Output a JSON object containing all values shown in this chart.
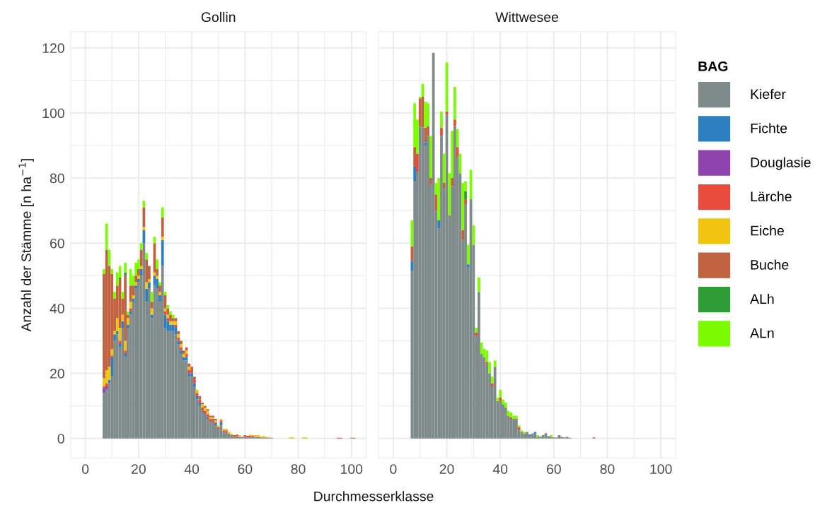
{
  "chart_data": [
    {
      "type": "bar",
      "stacked": true,
      "title": "Gollin",
      "ylabel": "Anzahl der Stämme [n ha$^{−1}$]",
      "xlabel": "Durchmesserklasse",
      "xlim": [
        -5.5,
        105.5
      ],
      "xticks": [
        0,
        20,
        40,
        60,
        80,
        100
      ],
      "ylim": [
        -6,
        125
      ],
      "yticks": [
        0,
        20,
        40,
        60,
        80,
        100,
        120
      ],
      "grid": true,
      "legend": "right",
      "legend_title": "BAG",
      "x": [
        7,
        8,
        9,
        10,
        11,
        12,
        13,
        14,
        15,
        16,
        17,
        18,
        19,
        20,
        21,
        22,
        23,
        24,
        25,
        26,
        27,
        28,
        29,
        30,
        31,
        32,
        33,
        34,
        35,
        36,
        37,
        38,
        39,
        40,
        41,
        42,
        43,
        44,
        45,
        46,
        47,
        48,
        49,
        50,
        51,
        52,
        53,
        54,
        55,
        56,
        57,
        58,
        59,
        60,
        61,
        62,
        63,
        64,
        65,
        66,
        67,
        68,
        69,
        70,
        77,
        78,
        82,
        83,
        95,
        96,
        100,
        101
      ],
      "series": [
        {
          "name": "Kiefer",
          "color": "#7f8a8a",
          "values": [
            14,
            15,
            17,
            19,
            30,
            32,
            28,
            34,
            25,
            34,
            38,
            42,
            46,
            48,
            50,
            60,
            42,
            46,
            37,
            47,
            46,
            42,
            53,
            34,
            33,
            33,
            33,
            32,
            29,
            26,
            24,
            24,
            19,
            19,
            16,
            12,
            10,
            8,
            7,
            6,
            5,
            5,
            4,
            3,
            4,
            2,
            2,
            1.5,
            1,
            0.5,
            0.7,
            0.5,
            0.5,
            0.5,
            0.3,
            0.5,
            0.5,
            0.5,
            0.5,
            0.3,
            0.3,
            0.3,
            0.2,
            0.2,
            null,
            null,
            null,
            null,
            null,
            null,
            null,
            null
          ]
        },
        {
          "name": "Fichte",
          "color": "#2e7fbf",
          "values": [
            null,
            null,
            1,
            6,
            2,
            1,
            1,
            2,
            1,
            1,
            1,
            1,
            1,
            1,
            2,
            4,
            4,
            2,
            1,
            3,
            3,
            2,
            8,
            4,
            3,
            2,
            2,
            2,
            1,
            1,
            1,
            1,
            1,
            1,
            1,
            1,
            1,
            0.5,
            0.5,
            0.5,
            null,
            0.5,
            0.5,
            null,
            1,
            null,
            null,
            null,
            null,
            null,
            null,
            null,
            null,
            null,
            null,
            null,
            null,
            null,
            null,
            null,
            null,
            null,
            null,
            null,
            null,
            null,
            null,
            null,
            null,
            null,
            null,
            null
          ]
        },
        {
          "name": "Douglasie",
          "color": "#8e44ad",
          "values": [
            1.5,
            1,
            null,
            null,
            null,
            null,
            null,
            null,
            null,
            null,
            null,
            null,
            null,
            null,
            null,
            null,
            null,
            null,
            null,
            null,
            null,
            null,
            null,
            null,
            null,
            null,
            null,
            null,
            null,
            null,
            null,
            null,
            null,
            null,
            null,
            null,
            null,
            null,
            null,
            null,
            null,
            null,
            null,
            null,
            null,
            null,
            null,
            null,
            null,
            null,
            null,
            null,
            null,
            null,
            null,
            null,
            null,
            null,
            null,
            null,
            null,
            null,
            null,
            null,
            null,
            null,
            null,
            null,
            null,
            null,
            null,
            null
          ]
        },
        {
          "name": "Lärche",
          "color": "#e74c3c",
          "values": [
            0.5,
            1,
            null,
            0.5,
            null,
            null,
            1,
            null,
            1,
            null,
            1,
            null,
            null,
            null,
            null,
            null,
            null,
            null,
            null,
            null,
            null,
            null,
            null,
            1,
            1,
            null,
            null,
            1,
            1,
            1,
            null,
            1,
            1,
            1,
            1,
            1,
            1,
            1,
            1,
            1,
            1,
            0.5,
            0.5,
            0.5,
            0.5,
            0.5,
            0.5,
            null,
            null,
            0.5,
            0.5,
            null,
            null,
            0.5,
            0.5,
            0.3,
            0.3,
            null,
            null,
            null,
            null,
            null,
            null,
            null,
            null,
            null,
            null,
            null,
            0.2,
            0.2,
            0.2,
            0.2
          ]
        },
        {
          "name": "Eiche",
          "color": "#f1c40f",
          "values": [
            2.5,
            4,
            4,
            2,
            1,
            4,
            4,
            2,
            3,
            2,
            2,
            1,
            1,
            1,
            1,
            1,
            2,
            1,
            2,
            1,
            1,
            1,
            1,
            1,
            1,
            1,
            1,
            1,
            1,
            1,
            1,
            1,
            1,
            null,
            null,
            1,
            null,
            1,
            1,
            1,
            0.5,
            0.5,
            0.5,
            0.5,
            0.5,
            0.5,
            0.5,
            0.5,
            0.5,
            null,
            null,
            0.5,
            null,
            null,
            null,
            0.4,
            0.2,
            0.5,
            0.5,
            0.3,
            0.5,
            0.2,
            0.2,
            null,
            0.3,
            0.3,
            0.3,
            0.3,
            null,
            null,
            null,
            null
          ]
        },
        {
          "name": "Buche",
          "color": "#c0623f",
          "values": [
            32,
            37,
            31,
            23,
            10,
            10,
            15,
            5,
            20,
            1,
            5,
            3,
            2,
            2,
            5,
            6,
            7,
            4,
            2,
            9,
            2,
            2,
            6,
            4,
            2,
            2,
            1,
            1,
            1,
            1,
            1,
            1,
            1,
            1,
            1,
            null,
            1,
            0.5,
            0.5,
            0.5,
            0.5,
            0.5,
            0.5,
            null,
            null,
            null,
            null,
            null,
            null,
            null,
            null,
            null,
            null,
            null,
            null,
            null,
            null,
            null,
            null,
            null,
            null,
            null,
            null,
            null,
            null,
            null,
            null,
            null,
            null,
            null,
            null,
            null
          ]
        },
        {
          "name": "ALh",
          "color": "#2e9b35",
          "values": [
            null,
            null,
            null,
            null,
            null,
            null,
            0.5,
            null,
            1,
            null,
            null,
            null,
            null,
            null,
            null,
            null,
            null,
            null,
            null,
            null,
            null,
            null,
            null,
            null,
            null,
            null,
            null,
            null,
            null,
            null,
            null,
            null,
            null,
            null,
            null,
            null,
            null,
            null,
            null,
            null,
            null,
            null,
            null,
            null,
            null,
            null,
            null,
            null,
            null,
            null,
            null,
            null,
            null,
            null,
            null,
            null,
            null,
            null,
            null,
            null,
            null,
            null,
            null,
            null,
            null,
            null,
            null,
            null,
            null,
            null,
            null,
            null
          ]
        },
        {
          "name": "ALn",
          "color": "#7cfc00",
          "values": [
            1.5,
            8,
            5,
            1.5,
            2,
            4,
            3.5,
            2,
            3,
            1,
            5,
            3,
            4,
            3,
            2,
            2,
            2,
            null,
            3,
            2,
            3,
            1,
            3,
            1,
            1,
            1,
            1,
            null,
            null,
            null,
            null,
            null,
            null,
            null,
            null,
            null,
            null,
            null,
            null,
            null,
            null,
            null,
            null,
            null,
            null,
            null,
            null,
            null,
            null,
            null,
            null,
            null,
            null,
            null,
            null,
            null,
            null,
            null,
            null,
            null,
            null,
            null,
            null,
            null,
            null,
            null,
            null,
            null,
            null,
            null,
            null,
            null
          ]
        }
      ]
    },
    {
      "type": "bar",
      "stacked": true,
      "title": "Wittwesee",
      "xlim": [
        -5.5,
        105.5
      ],
      "xticks": [
        0,
        20,
        40,
        60,
        80,
        100
      ],
      "ylim": [
        -6,
        125
      ],
      "yticks": [
        0,
        20,
        40,
        60,
        80,
        100,
        120
      ],
      "grid": true,
      "tick_labels": "x",
      "x": [
        7,
        8,
        9,
        10,
        11,
        12,
        13,
        14,
        15,
        16,
        17,
        18,
        19,
        20,
        21,
        22,
        23,
        24,
        25,
        26,
        27,
        28,
        29,
        30,
        31,
        32,
        33,
        34,
        35,
        36,
        37,
        38,
        39,
        40,
        41,
        42,
        43,
        44,
        45,
        46,
        47,
        48,
        49,
        50,
        51,
        52,
        53,
        54,
        55,
        56,
        57,
        58,
        59,
        60,
        61,
        62,
        63,
        64,
        65,
        66,
        75
      ],
      "series": [
        {
          "color": "#7f8a8a",
          "values": [
            51.5,
            79,
            82,
            96,
            95.5,
            90,
            93,
            78,
            118.5,
            70,
            64.5,
            93,
            77,
            99.5,
            68.5,
            77.5,
            96,
            86.5,
            81.5,
            61,
            72,
            52.5,
            73.5,
            59.5,
            31.5,
            45,
            26,
            25,
            23,
            20,
            16,
            22,
            11.5,
            11.5,
            10.5,
            9.5,
            7,
            6,
            6,
            6,
            2.5,
            2,
            1.5,
            2,
            0.7,
            1.5,
            1.5,
            0.5,
            0.6,
            1,
            1.6,
            0.7,
            0.5,
            0.3,
            0.3,
            1,
            0.5,
            0.3,
            0.5,
            0.2,
            null
          ]
        },
        {
          "color": "#2e7fbf",
          "values": [
            3,
            4.5,
            null,
            null,
            null,
            1,
            null,
            null,
            null,
            null,
            2.5,
            null,
            null,
            null,
            null,
            null,
            null,
            null,
            null,
            null,
            null,
            1,
            null,
            null,
            null,
            null,
            null,
            null,
            null,
            null,
            null,
            null,
            null,
            null,
            null,
            null,
            null,
            null,
            null,
            null,
            null,
            null,
            null,
            null,
            0.5,
            null,
            0.5,
            null,
            null,
            null,
            null,
            null,
            null,
            null,
            null,
            null,
            null,
            null,
            null,
            null,
            null
          ]
        },
        {
          "color": "#e74c3c",
          "values": [
            null,
            null,
            5.5,
            null,
            null,
            null,
            null,
            null,
            null,
            null,
            null,
            2.5,
            null,
            1,
            null,
            null,
            2,
            3,
            null,
            null,
            1.5,
            null,
            null,
            null,
            1,
            null,
            null,
            null,
            0.5,
            null,
            1,
            null,
            null,
            1,
            null,
            null,
            null,
            0.5,
            null,
            null,
            1,
            null,
            null,
            null,
            null,
            null,
            null,
            null,
            null,
            null,
            null,
            null,
            null,
            null,
            null,
            null,
            null,
            null,
            null,
            null,
            0.3
          ]
        },
        {
          "color": "#c0623f",
          "values": [
            4.5,
            6,
            null,
            8.5,
            9.5,
            4.5,
            3,
            2,
            null,
            5,
            null,
            null,
            1.5,
            null,
            null,
            2.5,
            null,
            null,
            null,
            3,
            null,
            null,
            null,
            null,
            null,
            null,
            null,
            null,
            null,
            null,
            null,
            null,
            null,
            null,
            null,
            null,
            null,
            null,
            null,
            null,
            null,
            null,
            null,
            null,
            null,
            null,
            null,
            null,
            null,
            null,
            null,
            null,
            null,
            null,
            null,
            null,
            null,
            null,
            null,
            null,
            null
          ]
        },
        {
          "color": "#2e9b35",
          "values": [
            null,
            null,
            null,
            null,
            null,
            null,
            null,
            null,
            null,
            null,
            null,
            null,
            null,
            null,
            null,
            null,
            null,
            null,
            null,
            null,
            2.5,
            null,
            null,
            null,
            null,
            null,
            null,
            null,
            null,
            null,
            null,
            null,
            null,
            null,
            null,
            null,
            null,
            null,
            null,
            null,
            null,
            null,
            null,
            null,
            null,
            null,
            null,
            null,
            null,
            null,
            null,
            null,
            null,
            null,
            null,
            null,
            null,
            null,
            null,
            null,
            null
          ]
        },
        {
          "color": "#7cfc00",
          "values": [
            8,
            13.5,
            10.5,
            0.5,
            4,
            8,
            7,
            13,
            null,
            3.5,
            13,
            5,
            9,
            15,
            13,
            14.5,
            10,
            5.5,
            6,
            14.5,
            3,
            6,
            9,
            6,
            1.5,
            4.5,
            3.5,
            2.5,
            3.5,
            3.5,
            2,
            2,
            1,
            2.5,
            1.5,
            1.5,
            1.5,
            1.5,
            1,
            1,
            0.5,
            0.5,
            0.5,
            null,
            null,
            null,
            null,
            0.5,
            null,
            null,
            null,
            null,
            0.5,
            null,
            null,
            null,
            null,
            null,
            null,
            null,
            null
          ]
        }
      ]
    }
  ]
}
